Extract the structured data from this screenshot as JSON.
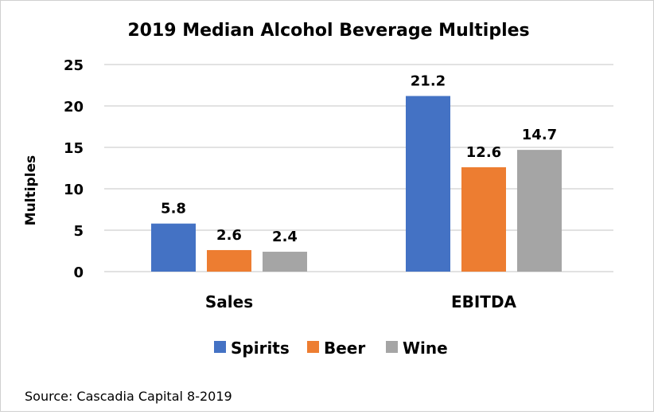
{
  "chart_data": {
    "type": "bar",
    "title": "2019 Median Alcohol Beverage Multiples",
    "xlabel": "",
    "ylabel": "Multiples",
    "ylim": [
      0,
      25
    ],
    "yticks": [
      "0",
      "5",
      "10",
      "15",
      "20",
      "25"
    ],
    "grid": true,
    "legend_position": "bottom",
    "categories": [
      "Sales",
      "EBITDA"
    ],
    "series": [
      {
        "name": "Spirits",
        "values": [
          5.8,
          21.2
        ],
        "labels": [
          "5.8",
          "21.2"
        ],
        "color": "#4472C4"
      },
      {
        "name": "Beer",
        "values": [
          2.6,
          12.6
        ],
        "labels": [
          "2.6",
          "12.6"
        ],
        "color": "#ED7D31"
      },
      {
        "name": "Wine",
        "values": [
          2.4,
          14.7
        ],
        "labels": [
          "2.4",
          "14.7"
        ],
        "color": "#A5A5A5"
      }
    ],
    "source": "Source: Cascadia Capital 8-2019"
  }
}
